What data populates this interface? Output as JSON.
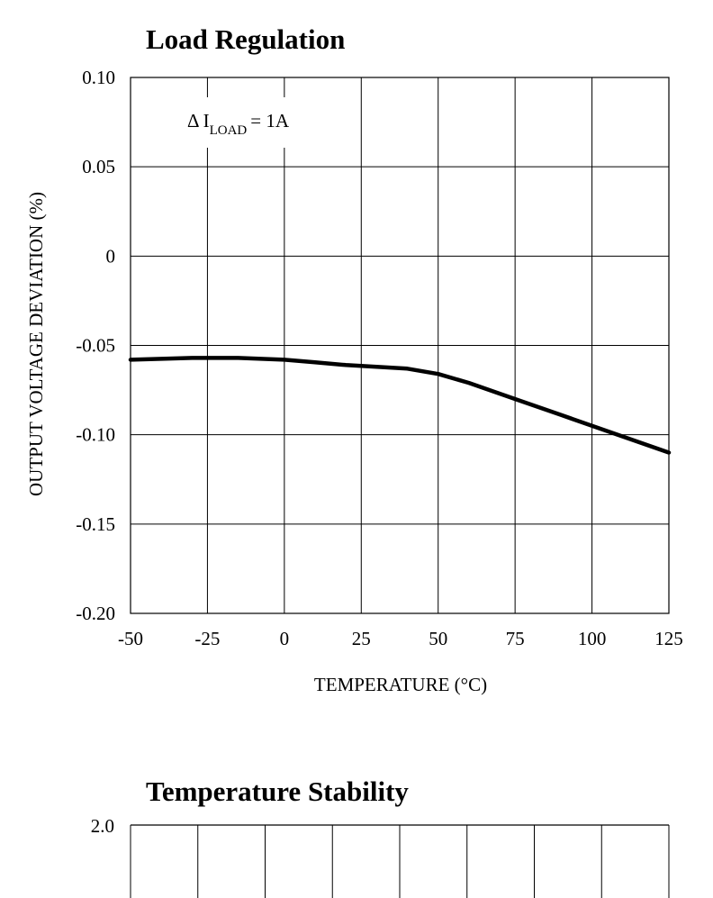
{
  "chart_data": [
    {
      "type": "line",
      "title": "Load Regulation",
      "xlabel": "TEMPERATURE (°C)",
      "ylabel": "OUTPUT VOLTAGE DEVIATION (%)",
      "xlim": [
        -50,
        125
      ],
      "ylim": [
        -0.2,
        0.1
      ],
      "x_ticks": [
        -50,
        -25,
        0,
        25,
        50,
        75,
        100,
        125
      ],
      "x_tick_labels": [
        "-50",
        "-25",
        "0",
        "25",
        "50",
        "75",
        "100",
        "125"
      ],
      "y_ticks": [
        0.1,
        0.05,
        0,
        -0.05,
        -0.1,
        -0.15,
        -0.2
      ],
      "y_tick_labels": [
        "0.10",
        "0.05",
        "0",
        "-0.05",
        "-0.10",
        "-0.15",
        "-0.20"
      ],
      "grid": true,
      "annotation": {
        "prefix": "Δ I",
        "subscript": "LOAD",
        "suffix": "= 1A"
      },
      "series": [
        {
          "x": [
            -50,
            -40,
            -30,
            -15,
            0,
            10,
            20,
            30,
            40,
            50,
            60,
            75,
            90,
            100,
            110,
            125
          ],
          "y": [
            -0.058,
            -0.0575,
            -0.057,
            -0.057,
            -0.058,
            -0.0595,
            -0.061,
            -0.062,
            -0.063,
            -0.066,
            -0.071,
            -0.08,
            -0.089,
            -0.095,
            -0.101,
            -0.11
          ]
        }
      ]
    },
    {
      "type": "line",
      "title": "Temperature Stability",
      "y_tick_labels": [
        "2.0"
      ],
      "grid": true
    }
  ]
}
